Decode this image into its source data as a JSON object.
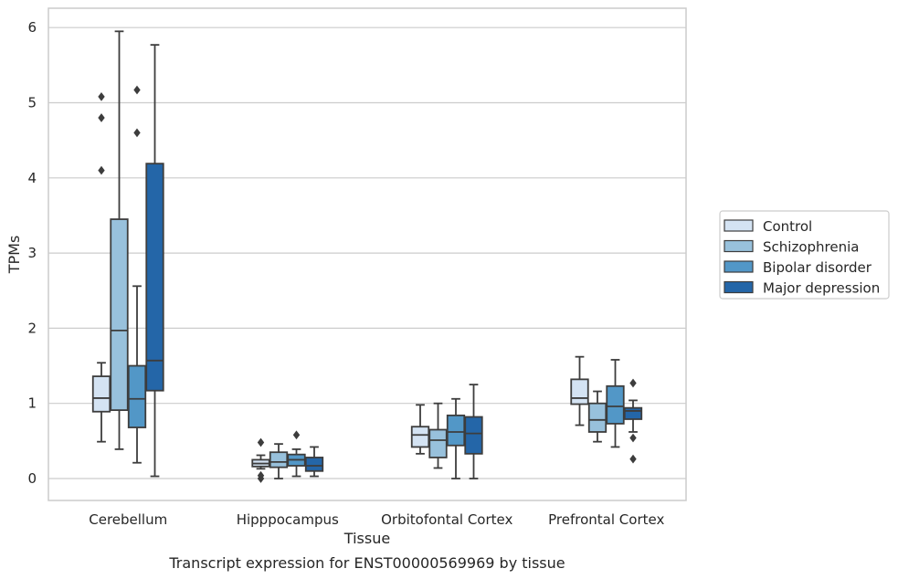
{
  "chart_data": {
    "type": "box",
    "xlabel": "Tissue",
    "ylabel": "TPMs",
    "caption": "Transcript expression for ENST00000569969 by tissue",
    "ylim": [
      -0.3,
      6.25
    ],
    "yticks": [
      0,
      1,
      2,
      3,
      4,
      5,
      6
    ],
    "grid": "horizontal",
    "legend_position": "right",
    "categories": [
      "Cerebellum",
      "Hipppocampus",
      "Orbitofontal Cortex",
      "Prefrontal Cortex"
    ],
    "series": [
      {
        "name": "Control",
        "color": "#d4e3f3",
        "boxes": [
          {
            "min": 0.49,
            "q1": 0.89,
            "median": 1.07,
            "q3": 1.36,
            "max": 1.54,
            "outliers": [
              4.1,
              4.8,
              5.08
            ]
          },
          {
            "min": 0.13,
            "q1": 0.16,
            "median": 0.2,
            "q3": 0.25,
            "max": 0.31,
            "outliers": [
              0.0,
              0.04,
              0.48
            ]
          },
          {
            "min": 0.33,
            "q1": 0.42,
            "median": 0.58,
            "q3": 0.69,
            "max": 0.98,
            "outliers": []
          },
          {
            "min": 0.71,
            "q1": 0.99,
            "median": 1.07,
            "q3": 1.32,
            "max": 1.62,
            "outliers": []
          }
        ]
      },
      {
        "name": "Schizophrenia",
        "color": "#98c1dc",
        "boxes": [
          {
            "min": 0.39,
            "q1": 0.91,
            "median": 1.97,
            "q3": 3.45,
            "max": 5.95,
            "outliers": []
          },
          {
            "min": 0.0,
            "q1": 0.15,
            "median": 0.22,
            "q3": 0.35,
            "max": 0.46,
            "outliers": []
          },
          {
            "min": 0.14,
            "q1": 0.28,
            "median": 0.51,
            "q3": 0.65,
            "max": 1.0,
            "outliers": []
          },
          {
            "min": 0.49,
            "q1": 0.62,
            "median": 0.78,
            "q3": 1.0,
            "max": 1.16,
            "outliers": []
          }
        ]
      },
      {
        "name": "Bipolar disorder",
        "color": "#5297c7",
        "boxes": [
          {
            "min": 0.21,
            "q1": 0.68,
            "median": 1.06,
            "q3": 1.5,
            "max": 2.56,
            "outliers": [
              4.6,
              5.17
            ]
          },
          {
            "min": 0.03,
            "q1": 0.17,
            "median": 0.25,
            "q3": 0.32,
            "max": 0.39,
            "outliers": [
              0.58
            ]
          },
          {
            "min": 0.0,
            "q1": 0.44,
            "median": 0.62,
            "q3": 0.84,
            "max": 1.06,
            "outliers": []
          },
          {
            "min": 0.42,
            "q1": 0.73,
            "median": 0.96,
            "q3": 1.23,
            "max": 1.58,
            "outliers": []
          }
        ]
      },
      {
        "name": "Major depression",
        "color": "#2466a8",
        "boxes": [
          {
            "min": 0.03,
            "q1": 1.17,
            "median": 1.57,
            "q3": 4.19,
            "max": 5.77,
            "outliers": []
          },
          {
            "min": 0.03,
            "q1": 0.1,
            "median": 0.17,
            "q3": 0.28,
            "max": 0.42,
            "outliers": []
          },
          {
            "min": 0.0,
            "q1": 0.33,
            "median": 0.6,
            "q3": 0.82,
            "max": 1.25,
            "outliers": []
          },
          {
            "min": 0.62,
            "q1": 0.79,
            "median": 0.9,
            "q3": 0.94,
            "max": 1.04,
            "outliers": [
              0.26,
              0.54,
              1.27
            ]
          }
        ]
      }
    ]
  }
}
